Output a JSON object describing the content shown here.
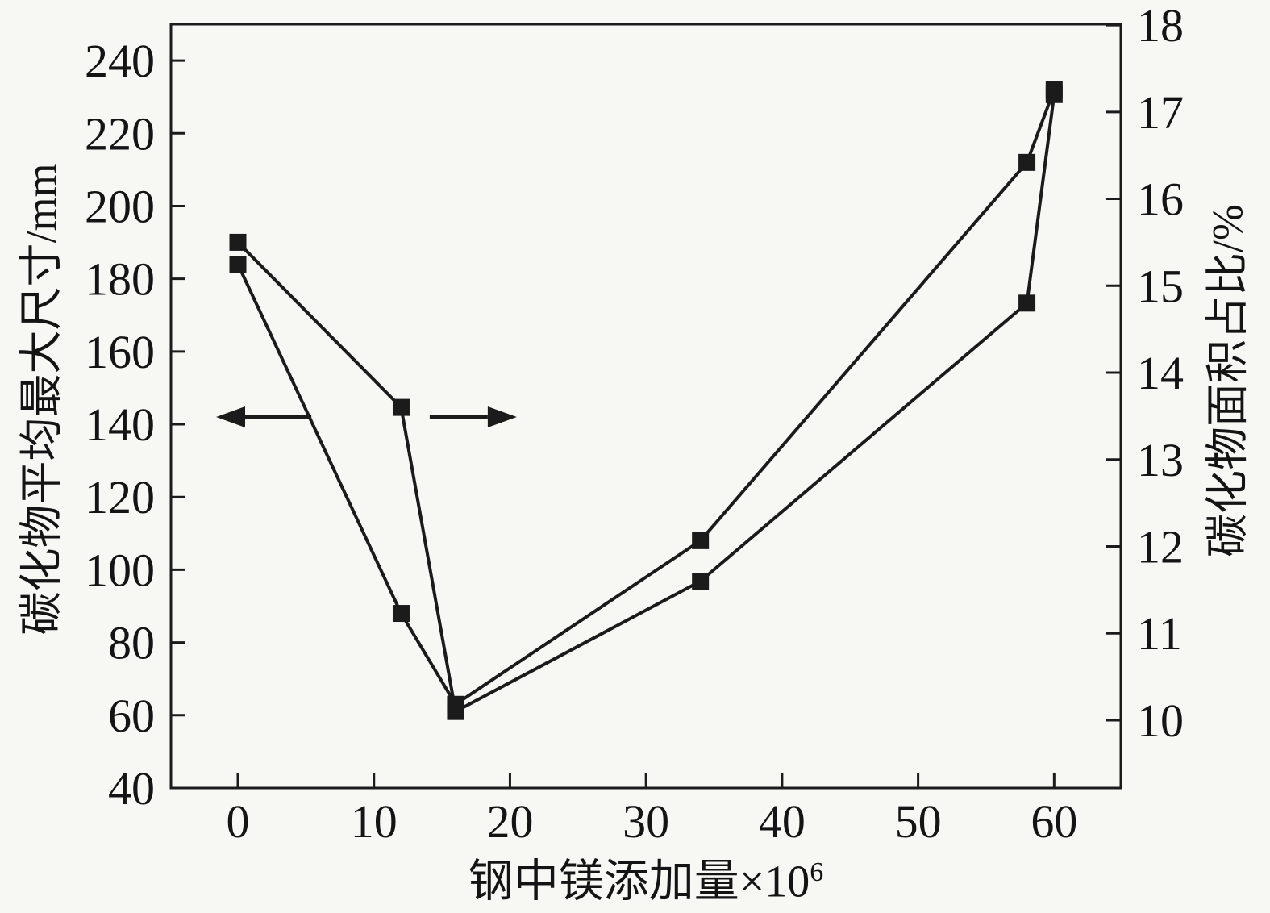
{
  "figure": {
    "background": "#f7f7f4",
    "line_color": "#1b1b1b",
    "text_color": "#141414"
  },
  "chart_data": {
    "type": "line",
    "title": "",
    "xlabel_base": "钢中镁添加量×10",
    "xlabel_exponent": "6",
    "ylabel_left": "碳化物平均最大尺寸/mm",
    "ylabel_right": "碳化物面积占比/%",
    "xlim": [
      -4.92,
      64.9
    ],
    "left_ylim": [
      40,
      250
    ],
    "right_ylim": [
      9.22,
      18.01
    ],
    "x_ticks": [
      0,
      10,
      20,
      30,
      40,
      50,
      60
    ],
    "left_y_ticks": [
      40,
      60,
      80,
      100,
      120,
      140,
      160,
      180,
      200,
      220,
      240
    ],
    "right_y_ticks": [
      10,
      11,
      12,
      13,
      14,
      15,
      16,
      17,
      18
    ],
    "grid": false,
    "legend": "none",
    "marker": "square",
    "series": [
      {
        "name": "碳化物平均最大尺寸",
        "axis": "left",
        "x": [
          0,
          12,
          16,
          34,
          58,
          60
        ],
        "y": [
          184,
          88,
          63,
          108,
          212,
          232
        ]
      },
      {
        "name": "碳化物面积占比",
        "axis": "right",
        "x": [
          0,
          12,
          16,
          34,
          58,
          60
        ],
        "y": [
          15.5,
          13.6,
          10.1,
          11.6,
          14.8,
          17.2
        ]
      }
    ],
    "axis_arrows": [
      {
        "direction": "left",
        "tip_x": -1.6,
        "tail_x": 5.4,
        "y_on_left_axis": 142
      },
      {
        "direction": "right",
        "tip_x": 20.5,
        "tail_x": 14.1,
        "y_on_left_axis": 142
      }
    ]
  }
}
